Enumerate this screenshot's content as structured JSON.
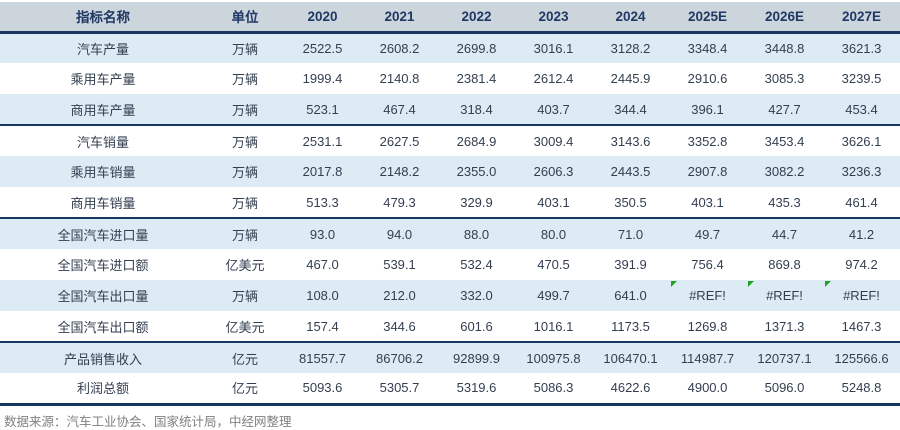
{
  "table": {
    "headers": [
      "指标名称",
      "单位",
      "2020",
      "2021",
      "2022",
      "2023",
      "2024",
      "2025E",
      "2026E",
      "2027E"
    ],
    "rows": [
      {
        "name": "汽车产量",
        "unit": "万辆",
        "values": [
          "2522.5",
          "2608.2",
          "2699.8",
          "3016.1",
          "3128.2",
          "3348.4",
          "3448.8",
          "3621.3"
        ],
        "group_end": false,
        "error_cols": []
      },
      {
        "name": "乘用车产量",
        "unit": "万辆",
        "values": [
          "1999.4",
          "2140.8",
          "2381.4",
          "2612.4",
          "2445.9",
          "2910.6",
          "3085.3",
          "3239.5"
        ],
        "group_end": false,
        "error_cols": []
      },
      {
        "name": "商用车产量",
        "unit": "万辆",
        "values": [
          "523.1",
          "467.4",
          "318.4",
          "403.7",
          "344.4",
          "396.1",
          "427.7",
          "453.4"
        ],
        "group_end": true,
        "error_cols": []
      },
      {
        "name": "汽车销量",
        "unit": "万辆",
        "values": [
          "2531.1",
          "2627.5",
          "2684.9",
          "3009.4",
          "3143.6",
          "3352.8",
          "3453.4",
          "3626.1"
        ],
        "group_end": false,
        "error_cols": []
      },
      {
        "name": "乘用车销量",
        "unit": "万辆",
        "values": [
          "2017.8",
          "2148.2",
          "2355.0",
          "2606.3",
          "2443.5",
          "2907.8",
          "3082.2",
          "3236.3"
        ],
        "group_end": false,
        "error_cols": []
      },
      {
        "name": "商用车销量",
        "unit": "万辆",
        "values": [
          "513.3",
          "479.3",
          "329.9",
          "403.1",
          "350.5",
          "403.1",
          "435.3",
          "461.4"
        ],
        "group_end": true,
        "error_cols": []
      },
      {
        "name": "全国汽车进口量",
        "unit": "万辆",
        "values": [
          "93.0",
          "94.0",
          "88.0",
          "80.0",
          "71.0",
          "49.7",
          "44.7",
          "41.2"
        ],
        "group_end": false,
        "error_cols": []
      },
      {
        "name": "全国汽车进口额",
        "unit": "亿美元",
        "values": [
          "467.0",
          "539.1",
          "532.4",
          "470.5",
          "391.9",
          "756.4",
          "869.8",
          "974.2"
        ],
        "group_end": false,
        "error_cols": []
      },
      {
        "name": "全国汽车出口量",
        "unit": "万辆",
        "values": [
          "108.0",
          "212.0",
          "332.0",
          "499.7",
          "641.0",
          "#REF!",
          "#REF!",
          "#REF!"
        ],
        "group_end": false,
        "error_cols": [
          5,
          6,
          7
        ]
      },
      {
        "name": "全国汽车出口额",
        "unit": "亿美元",
        "values": [
          "157.4",
          "344.6",
          "601.6",
          "1016.1",
          "1173.5",
          "1269.8",
          "1371.3",
          "1467.3"
        ],
        "group_end": true,
        "error_cols": []
      },
      {
        "name": "产品销售收入",
        "unit": "亿元",
        "values": [
          "81557.7",
          "86706.2",
          "92899.9",
          "100975.8",
          "106470.1",
          "114987.7",
          "120737.1",
          "125566.6"
        ],
        "group_end": false,
        "error_cols": []
      },
      {
        "name": "利润总额",
        "unit": "亿元",
        "values": [
          "5093.6",
          "5305.7",
          "5319.6",
          "5086.3",
          "4622.6",
          "4900.0",
          "5096.0",
          "5248.8"
        ],
        "group_end": false,
        "error_cols": []
      }
    ]
  },
  "footer": {
    "source_note": "数据来源：汽车工业协会、国家统计局，中经网整理"
  },
  "icons": {
    "error_indicator": "excel-error-triangle"
  },
  "colors": {
    "header_bg": "#ccd5dc",
    "row_alt_bg": "#ddebf5",
    "separator_navy": "#17375e",
    "header_text": "#1f3864",
    "body_text": "#333f50",
    "error_triangle_green": "#21a121",
    "note_text": "#808080"
  }
}
